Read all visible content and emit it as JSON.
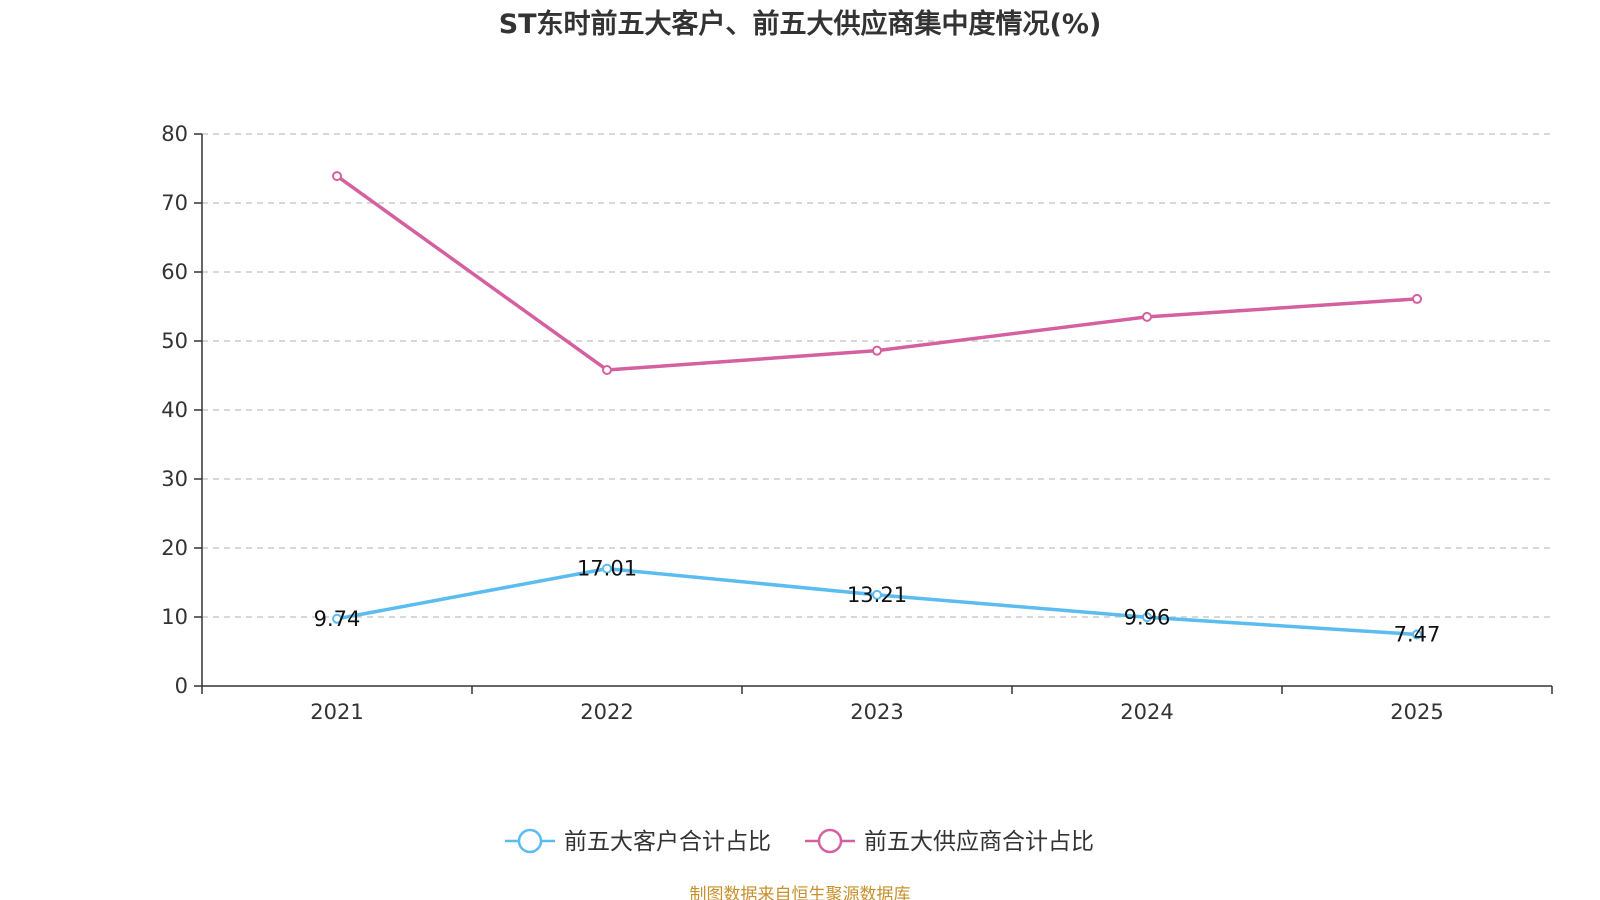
{
  "chart_data": {
    "type": "line",
    "title": "ST东时前五大客户、前五大供应商集中度情况(%)",
    "categories": [
      "2021",
      "2022",
      "2023",
      "2024",
      "2025"
    ],
    "ylim": [
      0,
      80
    ],
    "yticks": [
      0,
      10,
      20,
      30,
      40,
      50,
      60,
      70,
      80
    ],
    "grid": true,
    "legend_position": "bottom",
    "series": [
      {
        "name": "前五大客户合计占比",
        "values": [
          9.74,
          17.01,
          13.21,
          9.96,
          7.47
        ],
        "labels": [
          "9.74",
          "17.01",
          "13.21",
          "9.96",
          "7.47"
        ],
        "color": "#5bbcf0",
        "show_labels": true
      },
      {
        "name": "前五大供应商合计占比",
        "values": [
          73.9,
          45.8,
          48.6,
          53.5,
          56.1
        ],
        "color": "#d4609f",
        "show_labels": false
      }
    ]
  },
  "footer": {
    "source": "制图数据来自恒生聚源数据库"
  }
}
